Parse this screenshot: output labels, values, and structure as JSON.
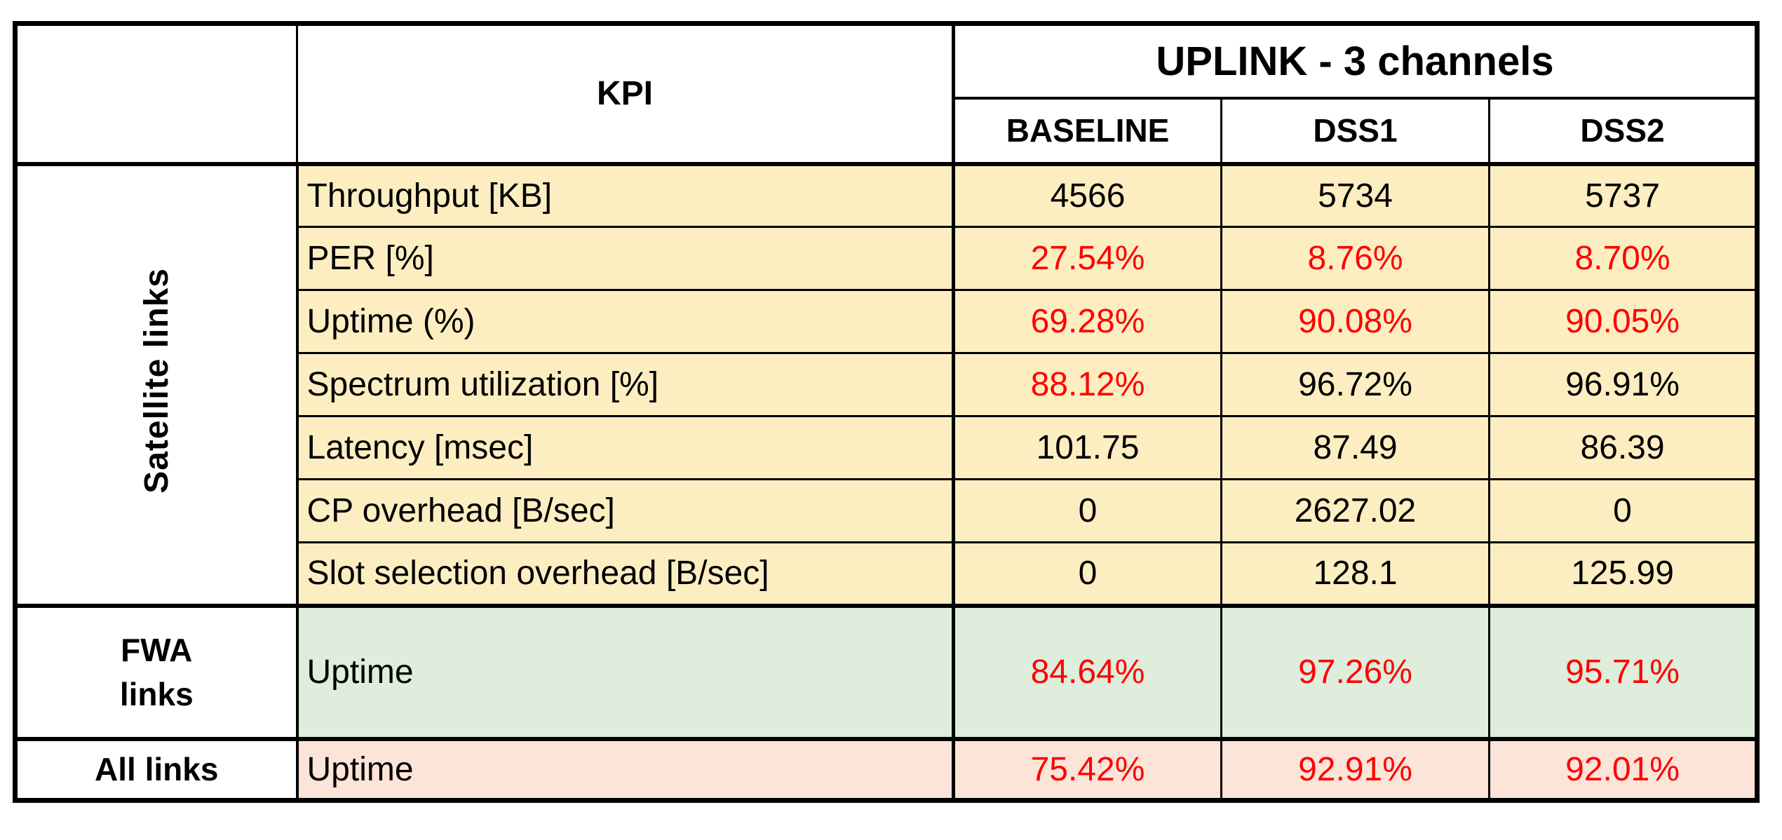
{
  "table": {
    "corner_label": "",
    "kpi_header": "KPI",
    "group_header": "UPLINK - 3 channels",
    "columns": [
      "BASELINE",
      "DSS1",
      "DSS2"
    ],
    "colors": {
      "red_text": "#ff0000",
      "black_text": "#000000",
      "border": "#000000",
      "satellite_bg": "#fdeec2",
      "fwa_bg": "#deeddc",
      "all_bg": "#fce4d8"
    },
    "sections": [
      {
        "key": "satellite",
        "group": "Satellite links",
        "vertical": true,
        "bg": "#fdeec2",
        "rows": [
          {
            "kpi": "Throughput [KB]",
            "values": [
              "4566",
              "5734",
              "5737"
            ],
            "red": [
              false,
              false,
              false
            ]
          },
          {
            "kpi": "PER [%]",
            "values": [
              "27.54%",
              "8.76%",
              "8.70%"
            ],
            "red": [
              true,
              true,
              true
            ]
          },
          {
            "kpi": "Uptime (%)",
            "values": [
              "69.28%",
              "90.08%",
              "90.05%"
            ],
            "red": [
              true,
              true,
              true
            ]
          },
          {
            "kpi": "Spectrum utilization [%]",
            "values": [
              "88.12%",
              "96.72%",
              "96.91%"
            ],
            "red": [
              true,
              false,
              false
            ]
          },
          {
            "kpi": "Latency [msec]",
            "values": [
              "101.75",
              "87.49",
              "86.39"
            ],
            "red": [
              false,
              false,
              false
            ]
          },
          {
            "kpi": "CP overhead [B/sec]",
            "values": [
              "0",
              "2627.02",
              "0"
            ],
            "red": [
              false,
              false,
              false
            ]
          },
          {
            "kpi": "Slot selection overhead [B/sec]",
            "values": [
              "0",
              "128.1",
              "125.99"
            ],
            "red": [
              false,
              false,
              false
            ]
          }
        ]
      },
      {
        "key": "fwa",
        "group": "FWA\nlinks",
        "vertical": false,
        "bg": "#deeddc",
        "rows": [
          {
            "kpi": "Uptime",
            "values": [
              "84.64%",
              "97.26%",
              "95.71%"
            ],
            "red": [
              true,
              true,
              true
            ]
          }
        ]
      },
      {
        "key": "all",
        "group": "All links",
        "vertical": false,
        "bg": "#fce4d8",
        "rows": [
          {
            "kpi": "Uptime",
            "values": [
              "75.42%",
              "92.91%",
              "92.01%"
            ],
            "red": [
              true,
              true,
              true
            ]
          }
        ]
      }
    ]
  }
}
